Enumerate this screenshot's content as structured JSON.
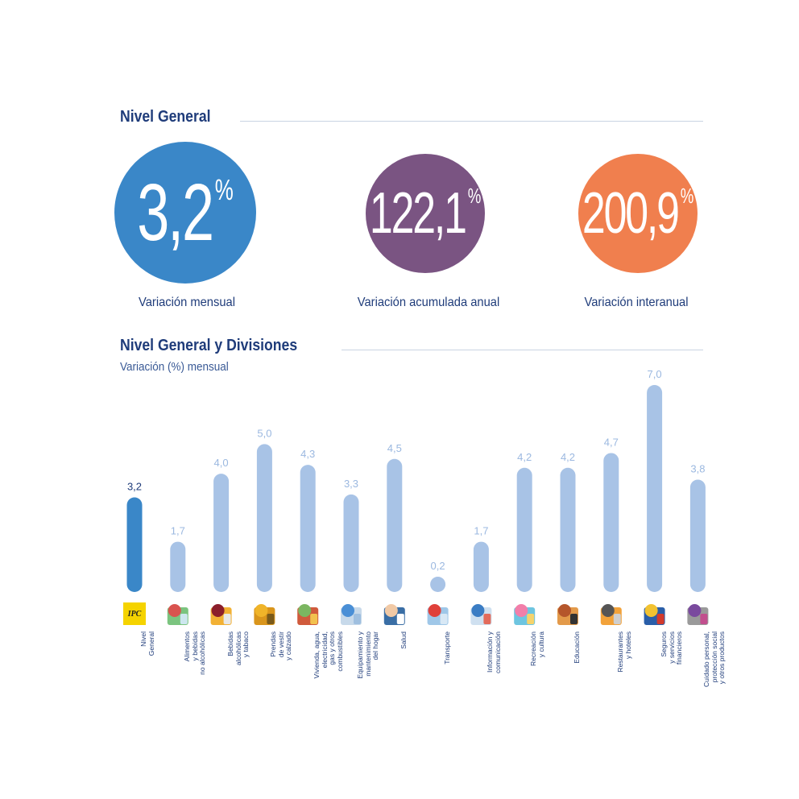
{
  "header": {
    "title": "Nivel General"
  },
  "kpis": [
    {
      "value": "3,2",
      "unit": "%",
      "label": "Variación mensual",
      "color": "#3a87c8"
    },
    {
      "value": "122,1",
      "unit": "%",
      "label": "Variación acumulada anual",
      "color": "#7a5482"
    },
    {
      "value": "200,9",
      "unit": "%",
      "label": "Variación interanual",
      "color": "#f07f4e"
    }
  ],
  "divisions": {
    "title": "Nivel General y Divisiones",
    "subtitle": "Variación (%) mensual"
  },
  "colors": {
    "title": "#1f3c7a",
    "highlight_bar": "#3a87c8",
    "bar": "#a8c3e6",
    "highlight_label": "#1f3c7a",
    "value_label": "#9bb8e0"
  },
  "chart_data": {
    "type": "bar",
    "title": "Nivel General y Divisiones",
    "subtitle": "Variación (%) mensual",
    "categories": [
      "Nivel\nGeneral",
      "Alimentos\ny bebidas\nno alcohólicas",
      "Bebidas\nalcohólicas\ny tabaco",
      "Prendas\nde vestir\ny calzado",
      "Vivienda, agua,\nelectricidad,\ngas y otros\ncombustibles",
      "Equipamiento y\nmantenimiento\ndel hogar",
      "Salud",
      "Transporte",
      "Información y\ncomunicación",
      "Recreación\ny cultura",
      "Educación",
      "Restaurantes\ny hoteles",
      "Seguros\ny servicios\nfinancieros",
      "Cuidado personal,\nprotección social\ny otros productos"
    ],
    "values": [
      3.2,
      1.7,
      4.0,
      5.0,
      4.3,
      3.3,
      4.5,
      0.2,
      1.7,
      4.2,
      4.2,
      4.7,
      7.0,
      3.8
    ],
    "value_labels": [
      "3,2",
      "1,7",
      "4,0",
      "5,0",
      "4,3",
      "3,3",
      "4,5",
      "0,2",
      "1,7",
      "4,2",
      "4,2",
      "4,7",
      "7,0",
      "3,8"
    ],
    "highlight_index": 0,
    "icons": [
      "ipc-logo-icon",
      "food-icon",
      "bottle-icon",
      "jacket-icon",
      "house-icon",
      "appliance-icon",
      "doctor-icon",
      "car-plane-icon",
      "computer-icon",
      "theater-masks-icon",
      "school-icon",
      "dining-icon",
      "bank-icon",
      "personal-care-icon"
    ],
    "ylim": [
      0,
      7.0
    ],
    "grid": false,
    "legend": "none"
  }
}
